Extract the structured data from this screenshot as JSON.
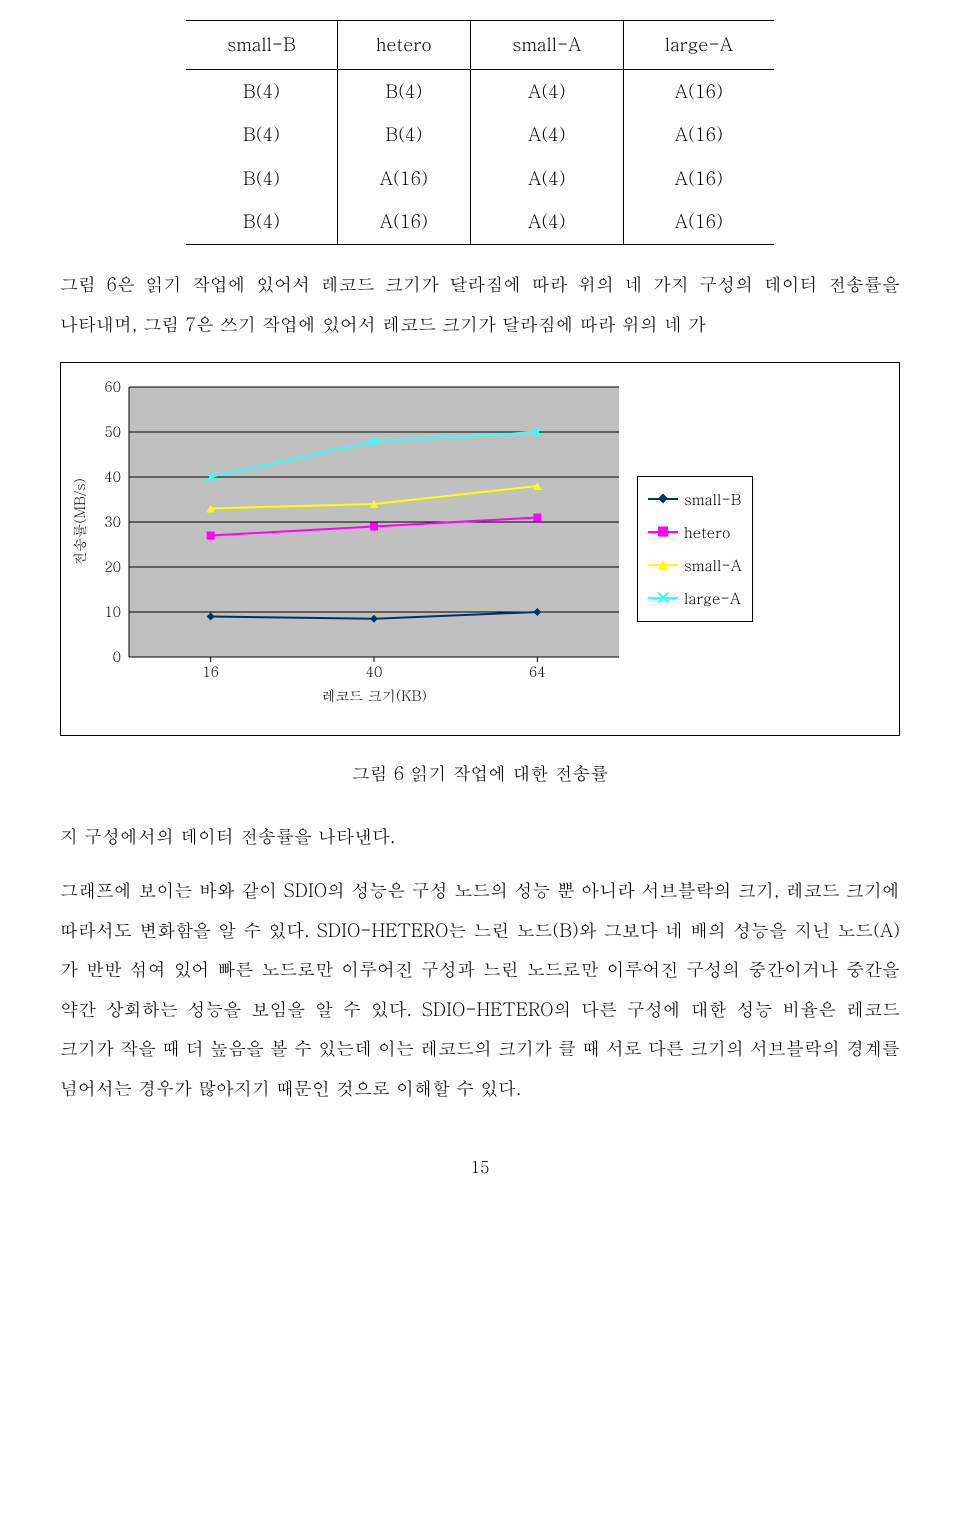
{
  "table": {
    "headers": [
      "small-B",
      "hetero",
      "small-A",
      "large-A"
    ],
    "rows": [
      [
        "B(4)",
        "B(4)",
        "A(4)",
        "A(16)"
      ],
      [
        "B(4)",
        "B(4)",
        "A(4)",
        "A(16)"
      ],
      [
        "B(4)",
        "A(16)",
        "A(4)",
        "A(16)"
      ],
      [
        "B(4)",
        "A(16)",
        "A(4)",
        "A(16)"
      ]
    ]
  },
  "paragraph_intro": "그림 6은 읽기 작업에 있어서 레코드 크기가 달라짐에 따라 위의 네 가지 구성의 데이터 전송률을 나타내며, 그림 7은 쓰기 작업에 있어서 레코드 크기가 달라짐에 따라 위의 네 가",
  "chart": {
    "type": "line",
    "plot_background_color": "#c0c0c0",
    "axis_color": "#000000",
    "grid_color": "#000000",
    "ylim": [
      0,
      60
    ],
    "ytick_step": 10,
    "yticks": [
      0,
      10,
      20,
      30,
      40,
      50,
      60
    ],
    "x_categories": [
      "16",
      "40",
      "64"
    ],
    "xlabel": "레코드 크기(KB)",
    "ylabel": "전송률(MB/s)",
    "label_fontsize": 14,
    "tick_fontsize": 14,
    "line_width": 2,
    "marker_size": 8,
    "series": [
      {
        "name": "small-B",
        "color": "#003366",
        "marker": "diamond",
        "values": [
          9,
          8.5,
          10
        ]
      },
      {
        "name": "hetero",
        "color": "#ff00ff",
        "marker": "square",
        "values": [
          27,
          29,
          31
        ]
      },
      {
        "name": "small-A",
        "color": "#ffff00",
        "marker": "triangle",
        "values": [
          33,
          34,
          38
        ]
      },
      {
        "name": "large-A",
        "color": "#33ffff",
        "marker": "x",
        "values": [
          40,
          48,
          50
        ]
      }
    ],
    "legend": {
      "position": "right",
      "items": [
        "small-B",
        "hetero",
        "small-A",
        "large-A"
      ]
    }
  },
  "caption_fig6": "그림 6 읽기 작업에 대한 전송률",
  "paragraph_cont": "지 구성에서의 데이터 전송률을 나타낸다.",
  "paragraph_body": "그래프에 보이는 바와 같이 SDIO의 성능은 구성 노드의 성능 뿐 아니라 서브블락의 크기, 레코드 크기에 따라서도 변화함을 알 수 있다. SDIO-HETERO는 느린 노드(B)와 그보다 네 배의 성능을 지닌 노드(A)가 반반 섞여 있어 빠른 노드로만 이루어진 구성과 느린 노드로만 이루어진 구성의 중간이거나 중간을 약간 상회하는 성능을 보임을 알 수 있다. SDIO-HETERO의 다른 구성에 대한 성능 비율은 레코드 크기가 작을 때 더 높음을 볼 수 있는데 이는 레코드의 크기가 클 때 서로 다른 크기의 서브블락의 경계를 넘어서는 경우가 많아지기 때문인 것으로 이해할 수 있다.",
  "page_number": "15"
}
